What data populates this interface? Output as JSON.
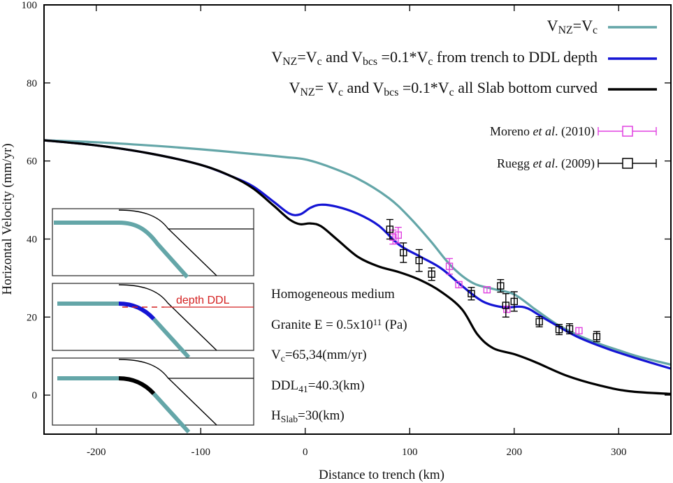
{
  "chart_data": {
    "type": "line",
    "title": "",
    "xlabel": "Distance to trench (km)",
    "ylabel": "Horizontal Velocity (mm/yr)",
    "xlim": [
      -250,
      350
    ],
    "ylim": [
      -10,
      100
    ],
    "x_ticks": [
      -200,
      -100,
      0,
      100,
      200,
      300
    ],
    "y_ticks": [
      0,
      20,
      40,
      60,
      80,
      100
    ],
    "grid": false,
    "legend_position": "top-right",
    "colors": {
      "teal": "#64a6a8",
      "blue": "#1414d4",
      "black": "#000000",
      "magenta": "#e040e0",
      "ddl_red": "#d42020"
    },
    "series": [
      {
        "name": "V_NZ=V_c",
        "legend_main": "V",
        "legend_parts": [
          [
            "V",
            ""
          ],
          [
            "NZ",
            "sub"
          ],
          [
            "=V",
            ""
          ],
          [
            "c",
            "sub"
          ]
        ],
        "color": "#64a6a8",
        "x": [
          -250,
          -200,
          -150,
          -100,
          -50,
          -20,
          0,
          20,
          50,
          80,
          100,
          120,
          140,
          160,
          180,
          200,
          220,
          240,
          260,
          280,
          300,
          320,
          350
        ],
        "y": [
          65.3,
          64.8,
          64.0,
          63.0,
          61.8,
          61.0,
          60.4,
          58.8,
          55.5,
          50.5,
          45.5,
          39.5,
          33.0,
          28.8,
          27.2,
          25.8,
          22.0,
          18.3,
          15.5,
          13.3,
          11.5,
          9.8,
          7.8
        ]
      },
      {
        "name": "V_NZ=V_c and V_bcs =0.1*V_c from trench to DDL depth",
        "legend_parts": [
          [
            "V",
            ""
          ],
          [
            "NZ",
            "sub"
          ],
          [
            "=V",
            ""
          ],
          [
            "c",
            "sub"
          ],
          [
            " and V",
            ""
          ],
          [
            "bcs",
            "sub"
          ],
          [
            " =0.1*V",
            ""
          ],
          [
            "c",
            "sub"
          ],
          [
            " from trench to DDL depth",
            ""
          ]
        ],
        "color": "#1414d4",
        "x": [
          -250,
          -200,
          -150,
          -100,
          -70,
          -50,
          -30,
          -15,
          -5,
          5,
          15,
          30,
          50,
          70,
          90,
          110,
          130,
          150,
          170,
          190,
          210,
          230,
          260,
          290,
          320,
          350
        ],
        "y": [
          65.3,
          64.0,
          62.0,
          59.0,
          56.0,
          53.5,
          49.5,
          46.5,
          46.3,
          48.0,
          48.8,
          48.3,
          46.5,
          43.5,
          38.5,
          35.5,
          32.5,
          28.0,
          24.0,
          22.5,
          22.5,
          19.5,
          15.0,
          11.8,
          9.2,
          6.8
        ]
      },
      {
        "name": "V_NZ= V_c and V_bcs =0.1*V_c all Slab bottom curved",
        "legend_parts": [
          [
            "V",
            ""
          ],
          [
            "NZ",
            "sub"
          ],
          [
            "= V",
            ""
          ],
          [
            "c",
            "sub"
          ],
          [
            " and  V",
            ""
          ],
          [
            "bcs",
            "sub"
          ],
          [
            " =0.1*V",
            ""
          ],
          [
            "c",
            "sub"
          ],
          [
            " all Slab bottom curved",
            ""
          ]
        ],
        "color": "#000000",
        "x": [
          -250,
          -200,
          -150,
          -100,
          -70,
          -50,
          -30,
          -15,
          -5,
          5,
          15,
          30,
          50,
          70,
          90,
          110,
          130,
          150,
          165,
          180,
          200,
          220,
          250,
          280,
          310,
          350
        ],
        "y": [
          65.3,
          64.0,
          62.0,
          59.0,
          56.0,
          53.0,
          48.5,
          45.0,
          43.8,
          44.0,
          43.3,
          40.0,
          35.5,
          33.0,
          31.5,
          29.5,
          26.5,
          22.0,
          15.5,
          12.0,
          10.5,
          8.5,
          5.0,
          2.6,
          1.0,
          0.3
        ]
      }
    ],
    "observations": [
      {
        "name": "Moreno et al. (2010)",
        "legend_parts": [
          [
            "Moreno ",
            ""
          ],
          [
            "et al",
            ""
          ],
          [
            ". (2010)",
            ""
          ]
        ],
        "color": "#e040e0",
        "points": [
          {
            "x": 84,
            "y": 40.5,
            "err": 1.8
          },
          {
            "x": 89,
            "y": 41.0,
            "err": 2.0
          },
          {
            "x": 138,
            "y": 33.0,
            "err": 2.0
          },
          {
            "x": 147,
            "y": 28.3,
            "err": 0
          },
          {
            "x": 174,
            "y": 27.0,
            "err": 0
          },
          {
            "x": 193,
            "y": 22.0,
            "err": 0
          },
          {
            "x": 262,
            "y": 16.5,
            "err": 0
          }
        ]
      },
      {
        "name": "Ruegg et al. (2009)",
        "legend_parts": [
          [
            "Ruegg ",
            ""
          ],
          [
            "et al",
            ""
          ],
          [
            ". (2009)",
            ""
          ]
        ],
        "color": "#000000",
        "points": [
          {
            "x": 81,
            "y": 42.5,
            "err": 2.5
          },
          {
            "x": 94,
            "y": 36.5,
            "err": 2.5
          },
          {
            "x": 109,
            "y": 34.5,
            "err": 2.8
          },
          {
            "x": 121,
            "y": 31.0,
            "err": 1.6
          },
          {
            "x": 159,
            "y": 26.0,
            "err": 1.6
          },
          {
            "x": 187,
            "y": 28.0,
            "err": 1.6
          },
          {
            "x": 192,
            "y": 23.0,
            "err": 3.0
          },
          {
            "x": 200,
            "y": 24.0,
            "err": 2.5
          },
          {
            "x": 224,
            "y": 18.8,
            "err": 1.3
          },
          {
            "x": 243,
            "y": 16.8,
            "err": 1.3
          },
          {
            "x": 253,
            "y": 17.0,
            "err": 1.3
          },
          {
            "x": 279,
            "y": 15.0,
            "err": 1.3
          }
        ]
      }
    ],
    "annotations": [
      {
        "id": "medium",
        "parts": [
          [
            "Homogeneous medium",
            ""
          ]
        ]
      },
      {
        "id": "granite",
        "parts": [
          [
            "Granite E = 0.5x10",
            ""
          ],
          [
            "11",
            "sup"
          ],
          [
            " (Pa)",
            ""
          ]
        ]
      },
      {
        "id": "vc",
        "parts": [
          [
            "V",
            ""
          ],
          [
            "c",
            "sub"
          ],
          [
            "=65,34(mm/yr)",
            ""
          ]
        ]
      },
      {
        "id": "ddl",
        "parts": [
          [
            "DDL",
            ""
          ],
          [
            "41",
            "sub"
          ],
          [
            "=40.3(km)",
            ""
          ]
        ]
      },
      {
        "id": "hslab",
        "parts": [
          [
            "H",
            ""
          ],
          [
            "Slab",
            "sub"
          ],
          [
            "=30(km)",
            ""
          ]
        ]
      }
    ],
    "insets": {
      "count": 3,
      "labels": [
        "",
        "depth DDL",
        ""
      ],
      "highlight_colors": [
        "#64a6a8",
        "#1414d4",
        "#000000"
      ]
    }
  }
}
